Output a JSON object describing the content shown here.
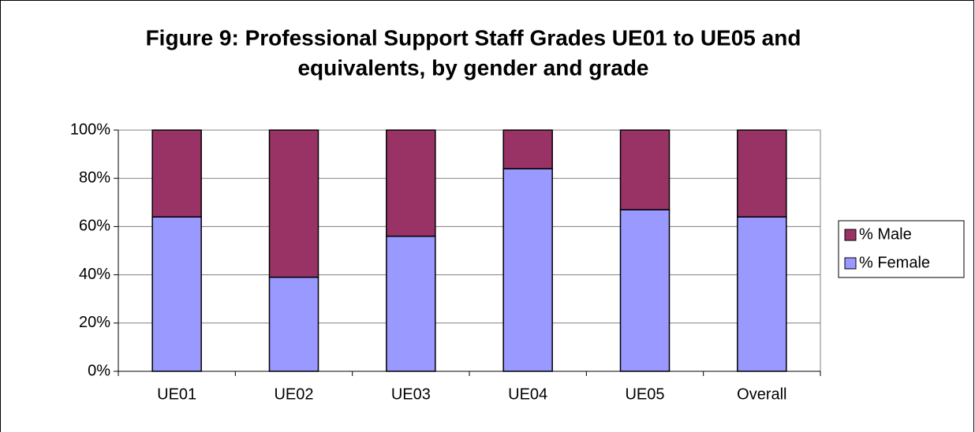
{
  "chart_data": {
    "type": "stacked_bar",
    "title": [
      "Figure 9: Professional Support Staff Grades UE01 to UE05 and",
      "equivalents, by gender and grade"
    ],
    "categories": [
      "UE01",
      "UE02",
      "UE03",
      "UE04",
      "UE05",
      "Overall"
    ],
    "series": [
      {
        "name": "% Female",
        "color": "#9999ff",
        "values": [
          64,
          39,
          56,
          84,
          67,
          64
        ]
      },
      {
        "name": "% Male",
        "color": "#993366",
        "values": [
          36,
          61,
          44,
          16,
          33,
          36
        ]
      }
    ],
    "ylim": [
      0,
      100
    ],
    "yticks": [
      {
        "value": 0,
        "label": "0%"
      },
      {
        "value": 20,
        "label": "20%"
      },
      {
        "value": 40,
        "label": "40%"
      },
      {
        "value": 60,
        "label": "60%"
      },
      {
        "value": 80,
        "label": "80%"
      },
      {
        "value": 100,
        "label": "100%"
      }
    ],
    "grid": true,
    "legend": "right"
  }
}
